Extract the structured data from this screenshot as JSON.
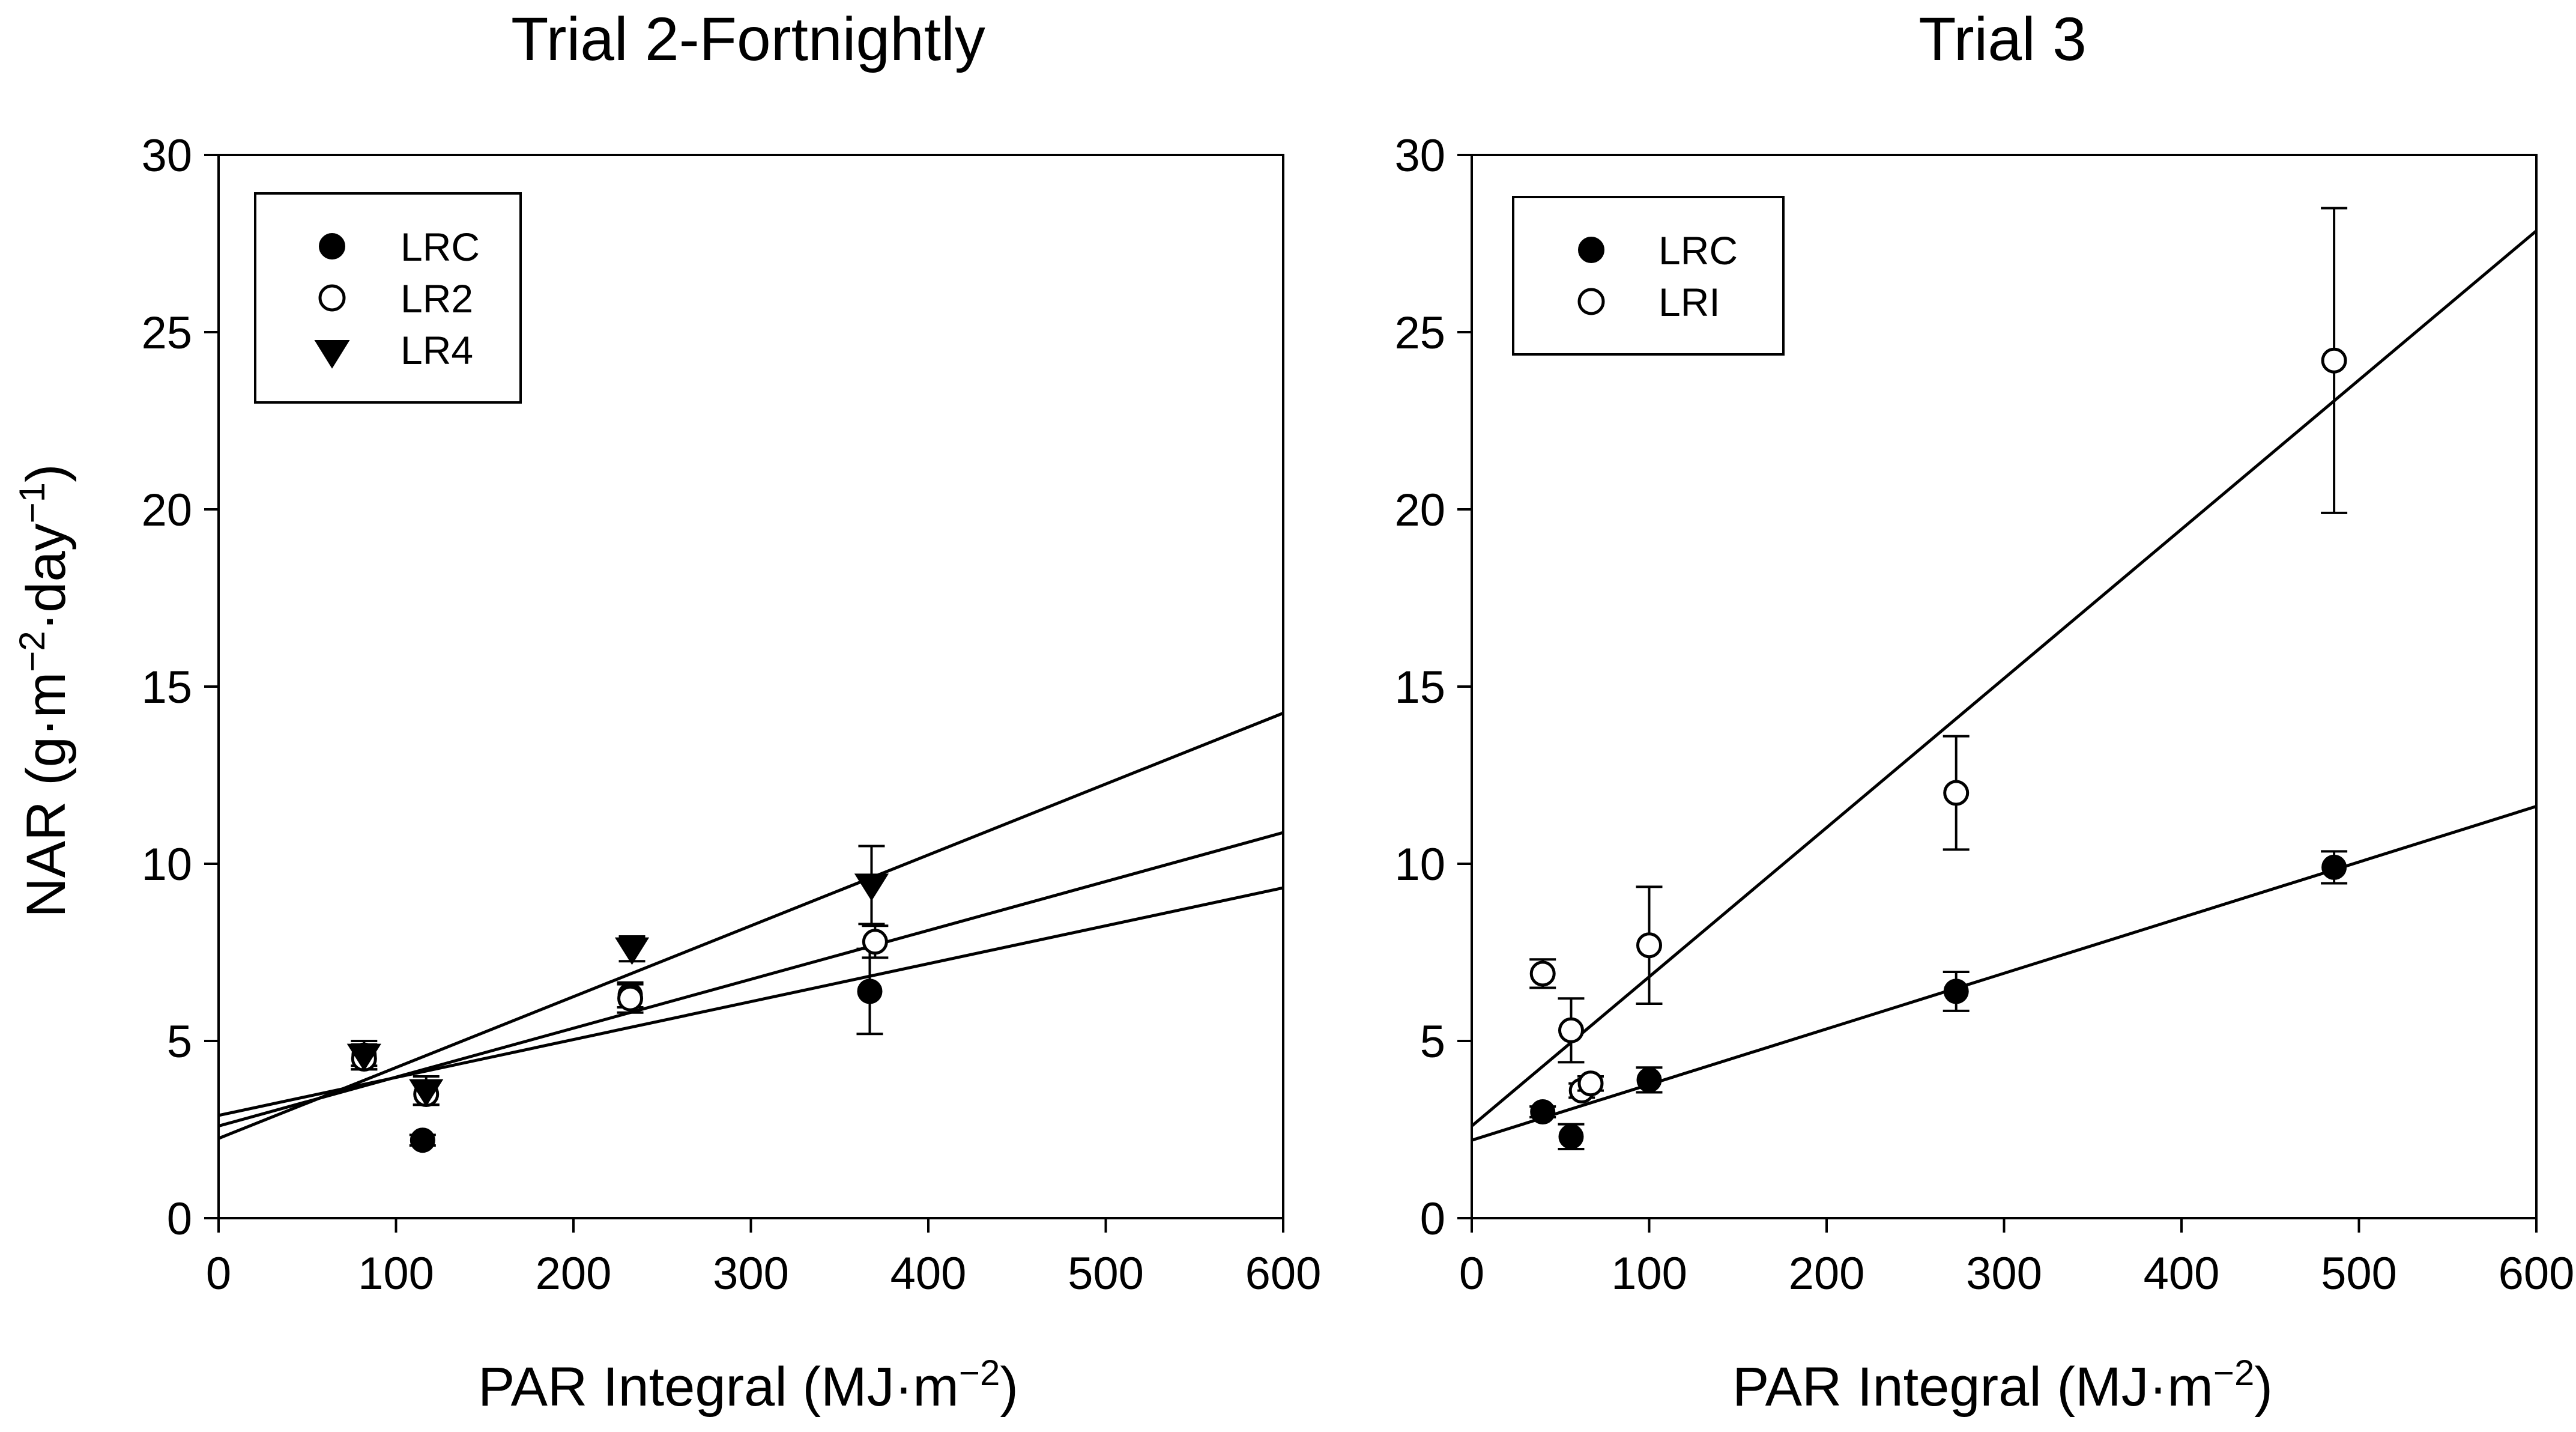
{
  "chart_data": [
    {
      "type": "scatter",
      "title": "Trial 2-Fortnightly",
      "xlabel": "PAR Integral (MJ·m−2)",
      "xlabel_parts": {
        "base": "PAR Integral (MJ·m",
        "sup": "−2",
        "end": ")"
      },
      "ylabel": "NAR (g·m−2·day−1)",
      "ylabel_parts": {
        "a": "NAR (g·m",
        "sup1": "−2",
        "b": "·day",
        "sup2": "−1",
        "c": ")"
      },
      "xlim": [
        0,
        600
      ],
      "ylim": [
        0,
        30
      ],
      "xticks": [
        0,
        100,
        200,
        300,
        400,
        500,
        600
      ],
      "yticks": [
        0,
        5,
        10,
        15,
        20,
        25,
        30
      ],
      "legend_position": "top-left",
      "series": [
        {
          "name": "LRC",
          "marker": "filled-circle",
          "points": [
            {
              "x": 82,
              "y": 4.6,
              "err": 0.3
            },
            {
              "x": 115,
              "y": 2.2,
              "err": 0.15
            },
            {
              "x": 232,
              "y": 6.3,
              "err": 0.35
            },
            {
              "x": 367,
              "y": 6.4,
              "err": 1.2
            }
          ],
          "fit": {
            "intercept": 2.9,
            "slope": 0.0107
          }
        },
        {
          "name": "LR2",
          "marker": "open-circle",
          "points": [
            {
              "x": 82,
              "y": 4.5,
              "err": 0.3
            },
            {
              "x": 117,
              "y": 3.5,
              "err": 0.3
            },
            {
              "x": 232,
              "y": 6.2,
              "err": 0.4
            },
            {
              "x": 370,
              "y": 7.8,
              "err": 0.45
            }
          ],
          "fit": {
            "intercept": 2.6,
            "slope": 0.0138
          }
        },
        {
          "name": "LR4",
          "marker": "filled-triangle-down",
          "points": [
            {
              "x": 82,
              "y": 4.6,
              "err": 0.4
            },
            {
              "x": 117,
              "y": 3.6,
              "err": 0.4
            },
            {
              "x": 233,
              "y": 7.6,
              "err": 0.35
            },
            {
              "x": 368,
              "y": 9.4,
              "err": 1.1
            }
          ],
          "fit": {
            "intercept": 2.25,
            "slope": 0.02
          }
        }
      ]
    },
    {
      "type": "scatter",
      "title": "Trial 3",
      "xlabel": "PAR Integral (MJ·m−2)",
      "xlabel_parts": {
        "base": "PAR Integral (MJ·m",
        "sup": "−2",
        "end": ")"
      },
      "xlim": [
        0,
        600
      ],
      "ylim": [
        0,
        30
      ],
      "xticks": [
        0,
        100,
        200,
        300,
        400,
        500,
        600
      ],
      "yticks": [
        0,
        5,
        10,
        15,
        20,
        25,
        30
      ],
      "legend_position": "top-left",
      "series": [
        {
          "name": "LRC",
          "marker": "filled-circle",
          "points": [
            {
              "x": 40,
              "y": 3.0,
              "err": 0.15
            },
            {
              "x": 56,
              "y": 2.3,
              "err": 0.35
            },
            {
              "x": 100,
              "y": 3.9,
              "err": 0.35
            },
            {
              "x": 273,
              "y": 6.4,
              "err": 0.55
            },
            {
              "x": 486,
              "y": 9.9,
              "err": 0.45
            }
          ],
          "fit": {
            "intercept": 2.2,
            "slope": 0.0157
          }
        },
        {
          "name": "LRI",
          "marker": "open-circle",
          "points": [
            {
              "x": 40,
              "y": 6.9,
              "err": 0.4
            },
            {
              "x": 56,
              "y": 5.3,
              "err": 0.9
            },
            {
              "x": 62,
              "y": 3.6,
              "err": 0.2
            },
            {
              "x": 67,
              "y": 3.8,
              "err": 0.2
            },
            {
              "x": 100,
              "y": 7.7,
              "err": 1.65
            },
            {
              "x": 273,
              "y": 12.0,
              "err": 1.6
            },
            {
              "x": 486,
              "y": 24.2,
              "err": 4.3
            }
          ],
          "fit": {
            "intercept": 2.6,
            "slope": 0.0421
          }
        }
      ]
    }
  ]
}
